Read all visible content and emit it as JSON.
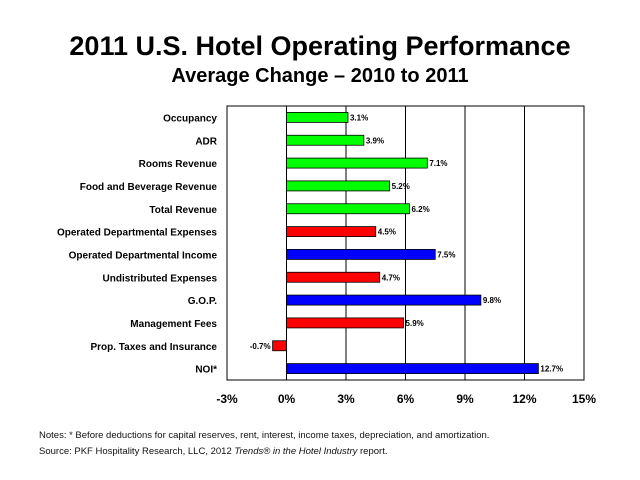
{
  "title": "2011 U.S. Hotel Operating Performance",
  "subtitle": "Average Change – 2010 to 2011",
  "chart_data": {
    "type": "bar",
    "orientation": "horizontal",
    "title": "2011 U.S. Hotel Operating Performance",
    "subtitle": "Average Change – 2010 to 2011",
    "categories": [
      "Occupancy",
      "ADR",
      "Rooms Revenue",
      "Food and Beverage Revenue",
      "Total Revenue",
      "Operated Departmental Expenses",
      "Operated Departmental Income",
      "Undistributed Expenses",
      "G.O.P.",
      "Management Fees",
      "Prop. Taxes and Insurance",
      "NOI*"
    ],
    "values": [
      3.1,
      3.9,
      7.1,
      5.2,
      6.2,
      4.5,
      7.5,
      4.7,
      9.8,
      5.9,
      -0.7,
      12.7
    ],
    "value_labels": [
      "3.1%",
      "3.9%",
      "7.1%",
      "5.2%",
      "6.2%",
      "4.5%",
      "7.5%",
      "4.7%",
      "9.8%",
      "5.9%",
      "-0.7%",
      "12.7%"
    ],
    "bar_colors": [
      "#00ff00",
      "#00ff00",
      "#00ff00",
      "#00ff00",
      "#00ff00",
      "#ff0000",
      "#0000ff",
      "#ff0000",
      "#0000ff",
      "#ff0000",
      "#ff0000",
      "#0000ff"
    ],
    "xlim": [
      -3,
      15
    ],
    "xticks": [
      -3,
      0,
      3,
      6,
      9,
      12,
      15
    ],
    "xtick_labels": [
      "-3%",
      "0%",
      "3%",
      "6%",
      "9%",
      "12%",
      "15%"
    ],
    "xlabel": "",
    "ylabel": "",
    "grid": "vertical"
  },
  "notes": {
    "line1": "Notes: * Before deductions for capital reserves, rent, interest, income taxes, depreciation, and amortization.",
    "line2_prefix": "Source: PKF Hospitality Research, LLC, 2012 ",
    "line2_italic": "Trends® in the Hotel Industry",
    "line2_suffix": " report."
  }
}
